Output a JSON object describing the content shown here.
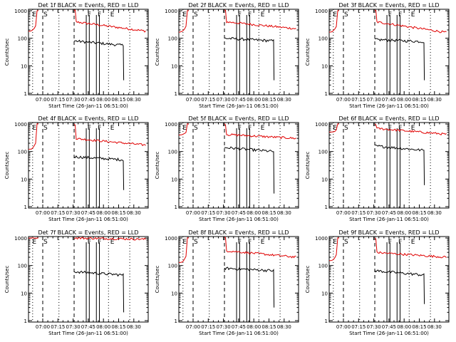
{
  "page": {
    "background": "#ffffff"
  },
  "colors": {
    "events": "#000000",
    "lld": "#e00000",
    "axis": "#000000"
  },
  "chart_data": [
    {
      "type": "line",
      "title": "Det 1f BLACK = Events, RED = LLD",
      "xlabel": "Start Time (26-Jan-11 06:51:00)",
      "ylabel": "Counts/sec",
      "x_ticks": [
        "07:00",
        "07:15",
        "07:30",
        "07:45",
        "08:00",
        "08:15",
        "08:30"
      ],
      "y_ticks": [
        "1",
        "10",
        "100",
        "1000"
      ],
      "y_scale": "log",
      "ylim": [
        1,
        1000
      ],
      "markers": [
        "E",
        "S",
        "F",
        "F",
        "E"
      ],
      "series": [
        {
          "color": "red",
          "values": {
            "rise_from": 180,
            "peak": 1000,
            "after_gap": 400,
            "end": 180
          }
        },
        {
          "color": "black",
          "values": {
            "start": 80,
            "end": 55,
            "drop_to": 3
          }
        }
      ]
    },
    {
      "type": "line",
      "title": "Det 2f BLACK = Events, RED = LLD",
      "xlabel": "Start Time (26-Jan-11 06:51:00)",
      "ylabel": "Counts/sec",
      "x_ticks": [
        "07:00",
        "07:15",
        "07:30",
        "07:45",
        "08:00",
        "08:15",
        "08:30"
      ],
      "y_ticks": [
        "1",
        "10",
        "100",
        "1000"
      ],
      "y_scale": "log",
      "ylim": [
        1,
        1000
      ],
      "markers": [
        "E",
        "S",
        "F",
        "F",
        "E"
      ],
      "series": [
        {
          "color": "red",
          "values": {
            "rise_from": 170,
            "peak": 1000,
            "after_gap": 400,
            "end": 220
          }
        },
        {
          "color": "black",
          "values": {
            "start": 100,
            "end": 80,
            "drop_to": 3
          }
        }
      ]
    },
    {
      "type": "line",
      "title": "Det 3f BLACK = Events, RED = LLD",
      "xlabel": "Start Time (26-Jan-11 06:51:00)",
      "ylabel": "Counts/sec",
      "x_ticks": [
        "07:00",
        "07:15",
        "07:30",
        "07:45",
        "08:00",
        "08:15",
        "08:30"
      ],
      "y_ticks": [
        "1",
        "10",
        "100",
        "1000"
      ],
      "y_scale": "log",
      "ylim": [
        1,
        1000
      ],
      "markers": [
        "E",
        "S",
        "F",
        "F",
        "E"
      ],
      "series": [
        {
          "color": "red",
          "values": {
            "rise_from": 170,
            "peak": 1000,
            "after_gap": 400,
            "end": 160
          }
        },
        {
          "color": "black",
          "values": {
            "start": 90,
            "end": 75,
            "drop_to": 3
          }
        }
      ]
    },
    {
      "type": "line",
      "title": "Det 4f BLACK = Events, RED = LLD",
      "xlabel": "Start Time (26-Jan-11 06:51:00)",
      "ylabel": "Counts/sec",
      "x_ticks": [
        "07:00",
        "07:15",
        "07:30",
        "07:45",
        "08:00",
        "08:15",
        "08:30"
      ],
      "y_ticks": [
        "1",
        "10",
        "100",
        "1000"
      ],
      "y_scale": "log",
      "ylim": [
        1,
        1000
      ],
      "markers": [
        "E",
        "S",
        "F",
        "F",
        "E"
      ],
      "series": [
        {
          "color": "red",
          "values": {
            "rise_from": 120,
            "peak": 1000,
            "after_gap": 300,
            "end": 170
          }
        },
        {
          "color": "black",
          "values": {
            "start": 65,
            "end": 50,
            "drop_to": 4
          }
        }
      ]
    },
    {
      "type": "line",
      "title": "Det 5f BLACK = Events, RED = LLD",
      "xlabel": "Start Time (26-Jan-11 06:51:00)",
      "ylabel": "Counts/sec",
      "x_ticks": [
        "07:00",
        "07:15",
        "07:30",
        "07:45",
        "08:00",
        "08:15",
        "08:30"
      ],
      "y_ticks": [
        "1",
        "10",
        "100",
        "1000"
      ],
      "y_scale": "log",
      "ylim": [
        1,
        1000
      ],
      "markers": [
        "E",
        "S",
        "F",
        "F",
        "E"
      ],
      "series": [
        {
          "color": "red",
          "values": {
            "rise_from": 400,
            "peak": 1000,
            "after_gap": 420,
            "end": 300
          }
        },
        {
          "color": "black",
          "values": {
            "start": 140,
            "end": 100,
            "drop_to": 3
          }
        }
      ]
    },
    {
      "type": "line",
      "title": "Det 6f BLACK = Events, RED = LLD",
      "xlabel": "Start Time (26-Jan-11 06:51:00)",
      "ylabel": "Counts/sec",
      "x_ticks": [
        "07:00",
        "07:15",
        "07:30",
        "07:45",
        "08:00",
        "08:15",
        "08:30"
      ],
      "y_ticks": [
        "1",
        "10",
        "100",
        "1000"
      ],
      "y_scale": "log",
      "ylim": [
        1,
        1000
      ],
      "markers": [
        "E",
        "S",
        "F",
        "F",
        "E"
      ],
      "series": [
        {
          "color": "red",
          "values": {
            "rise_from": 500,
            "peak": 1000,
            "after_gap": 700,
            "end": 420
          }
        },
        {
          "color": "black",
          "values": {
            "start": 160,
            "end": 110,
            "drop_to": 6
          }
        }
      ]
    },
    {
      "type": "line",
      "title": "Det 7f BLACK = Events, RED = LLD",
      "xlabel": "Start Time (26-Jan-11 06:51:00)",
      "ylabel": "Counts/sec",
      "x_ticks": [
        "07:00",
        "07:15",
        "07:30",
        "07:45",
        "08:00",
        "08:15",
        "08:30"
      ],
      "y_ticks": [
        "1",
        "10",
        "100",
        "1000"
      ],
      "y_scale": "log",
      "ylim": [
        1,
        1000
      ],
      "markers": [
        "E",
        "S",
        "F",
        "F",
        "E"
      ],
      "series": [
        {
          "color": "red",
          "values": {
            "rise_from": 1000,
            "peak": 1000,
            "after_gap": 1000,
            "end": 900
          }
        },
        {
          "color": "black",
          "values": {
            "start": 60,
            "end": 45,
            "drop_to": 2
          }
        }
      ]
    },
    {
      "type": "line",
      "title": "Det 8f BLACK = Events, RED = LLD",
      "xlabel": "Start Time (26-Jan-11 06:51:00)",
      "ylabel": "Counts/sec",
      "x_ticks": [
        "07:00",
        "07:15",
        "07:30",
        "07:45",
        "08:00",
        "08:15",
        "08:30"
      ],
      "y_ticks": [
        "1",
        "10",
        "100",
        "1000"
      ],
      "y_scale": "log",
      "ylim": [
        1,
        1000
      ],
      "markers": [
        "E",
        "S",
        "F",
        "F",
        "E"
      ],
      "series": [
        {
          "color": "red",
          "values": {
            "rise_from": 130,
            "peak": 1000,
            "after_gap": 350,
            "end": 200
          }
        },
        {
          "color": "black",
          "values": {
            "start": 80,
            "end": 65,
            "drop_to": 3
          }
        }
      ]
    },
    {
      "type": "line",
      "title": "Det 9f BLACK = Events, RED = LLD",
      "xlabel": "Start Time (26-Jan-11 06:51:00)",
      "ylabel": "Counts/sec",
      "x_ticks": [
        "07:00",
        "07:15",
        "07:30",
        "07:45",
        "08:00",
        "08:15",
        "08:30"
      ],
      "y_ticks": [
        "1",
        "10",
        "100",
        "1000"
      ],
      "y_scale": "log",
      "ylim": [
        1,
        1000
      ],
      "markers": [
        "E",
        "S",
        "F",
        "F",
        "E"
      ],
      "series": [
        {
          "color": "red",
          "values": {
            "rise_from": 150,
            "peak": 1000,
            "after_gap": 300,
            "end": 200
          }
        },
        {
          "color": "black",
          "values": {
            "start": 65,
            "end": 45,
            "drop_to": 4
          }
        }
      ]
    }
  ]
}
